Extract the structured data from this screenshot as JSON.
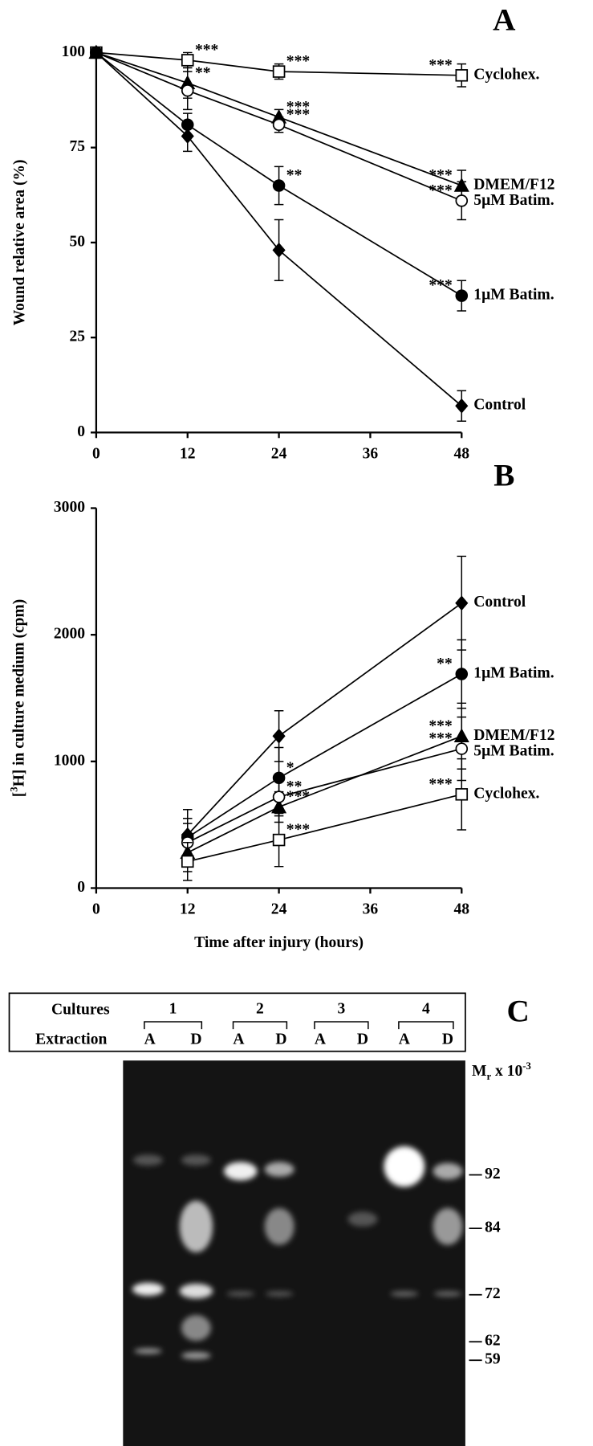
{
  "chart_data": [
    {
      "type": "line",
      "panel": "A",
      "y_label": "Wound relative area (%)",
      "x": [
        0,
        12,
        24,
        48
      ],
      "xlim": [
        0,
        48
      ],
      "xticks": [
        0,
        12,
        24,
        36,
        48
      ],
      "ylim": [
        0,
        100
      ],
      "yticks": [
        0,
        25,
        50,
        75,
        100
      ],
      "series": [
        {
          "name": "Cyclohex.",
          "color": "#000000",
          "marker": "square-open",
          "values": [
            100,
            98,
            95,
            94
          ],
          "errors": [
            0,
            2,
            2,
            3
          ],
          "significance": [
            null,
            "***",
            "***",
            "***"
          ]
        },
        {
          "name": "DMEM/F12",
          "color": "#000000",
          "marker": "triangle",
          "values": [
            100,
            92,
            83,
            65
          ],
          "errors": [
            0,
            4,
            2,
            4
          ],
          "significance": [
            null,
            "**",
            "***",
            "***"
          ]
        },
        {
          "name": "5μM Batim.",
          "color": "#000000",
          "marker": "circle-open",
          "values": [
            100,
            90,
            81,
            61
          ],
          "errors": [
            0,
            5,
            2,
            5
          ],
          "significance": [
            null,
            null,
            "***",
            "***"
          ]
        },
        {
          "name": "1μM Batim.",
          "color": "#000000",
          "marker": "circle",
          "values": [
            100,
            81,
            65,
            36
          ],
          "errors": [
            0,
            3,
            5,
            4
          ],
          "significance": [
            null,
            null,
            "**",
            "***"
          ]
        },
        {
          "name": "Control",
          "color": "#000000",
          "marker": "diamond",
          "values": [
            100,
            78,
            48,
            7
          ],
          "errors": [
            0,
            4,
            8,
            4
          ],
          "significance": [
            null,
            null,
            null,
            null
          ]
        }
      ]
    },
    {
      "type": "line",
      "panel": "B",
      "y_label_parts": [
        "[",
        "3",
        "H] in culture medium (cpm)"
      ],
      "x_label": "Time after injury (hours)",
      "x": [
        12,
        24,
        48
      ],
      "xlim": [
        0,
        48
      ],
      "xticks": [
        0,
        12,
        24,
        36,
        48
      ],
      "ylim": [
        0,
        3000
      ],
      "yticks": [
        0,
        1000,
        2000,
        3000
      ],
      "series": [
        {
          "name": "Control",
          "color": "#000000",
          "marker": "diamond",
          "values": [
            420,
            1200,
            2250
          ],
          "errors": [
            200,
            200,
            370
          ],
          "significance": [
            null,
            null,
            null
          ]
        },
        {
          "name": "1μM Batim.",
          "color": "#000000",
          "marker": "circle",
          "values": [
            400,
            870,
            1690
          ],
          "errors": [
            150,
            240,
            270
          ],
          "significance": [
            null,
            "*",
            "**"
          ]
        },
        {
          "name": "DMEM/F12",
          "color": "#000000",
          "marker": "triangle",
          "values": [
            280,
            640,
            1200
          ],
          "errors": [
            150,
            120,
            260
          ],
          "significance": [
            null,
            "***",
            "***"
          ]
        },
        {
          "name": "5μM Batim.",
          "color": "#000000",
          "marker": "circle-open",
          "values": [
            360,
            720,
            1100
          ],
          "errors": [
            150,
            150,
            250
          ],
          "significance": [
            null,
            "**",
            "***"
          ]
        },
        {
          "name": "Cyclohex.",
          "color": "#000000",
          "marker": "square-open",
          "values": [
            210,
            380,
            740
          ],
          "errors": [
            150,
            210,
            280
          ],
          "significance": [
            null,
            "***",
            "***"
          ]
        }
      ]
    }
  ],
  "panel_c": {
    "panel": "C",
    "row_labels": [
      "Cultures",
      "Extraction"
    ],
    "cultures": [
      "1",
      "2",
      "3",
      "4"
    ],
    "extraction": [
      "A",
      "D",
      "A",
      "D",
      "A",
      "D",
      "A",
      "D"
    ],
    "mr_label": [
      "M",
      "r",
      " x 10",
      "-3"
    ],
    "markers": [
      "92",
      "84",
      "72",
      "62",
      "59"
    ]
  }
}
